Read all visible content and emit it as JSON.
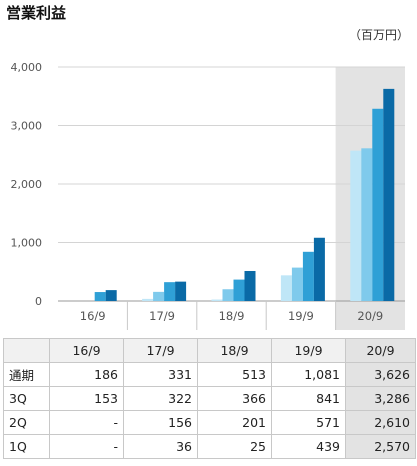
{
  "title": "営業利益",
  "unit": "（百万円）",
  "chart_data": {
    "type": "bar",
    "title": "営業利益",
    "categories": [
      "16/9",
      "17/9",
      "18/9",
      "19/9",
      "20/9"
    ],
    "ylim": [
      0,
      4000
    ],
    "yticks": [
      "0",
      "1,000",
      "2,000",
      "3,000",
      "4,000"
    ],
    "ytick_values": [
      0,
      1000,
      2000,
      3000,
      4000
    ],
    "grid": true,
    "highlight_category": "20/9",
    "series": [
      {
        "name": "1Q",
        "color": "#bfe6f7",
        "values": [
          null,
          36,
          25,
          439,
          2570
        ]
      },
      {
        "name": "2Q",
        "color": "#7fcaec",
        "values": [
          null,
          156,
          201,
          571,
          2610
        ]
      },
      {
        "name": "3Q",
        "color": "#2fa0d6",
        "values": [
          153,
          322,
          366,
          841,
          3286
        ]
      },
      {
        "name": "通期",
        "color": "#0a6aa6",
        "values": [
          186,
          331,
          513,
          1081,
          3626
        ]
      }
    ]
  },
  "table": {
    "headers": [
      "16/9",
      "17/9",
      "18/9",
      "19/9",
      "20/9"
    ],
    "rows": [
      {
        "label": "通期",
        "cells": [
          "186",
          "331",
          "513",
          "1,081",
          "3,626"
        ]
      },
      {
        "label": "3Q",
        "cells": [
          "153",
          "322",
          "366",
          "841",
          "3,286"
        ]
      },
      {
        "label": "2Q",
        "cells": [
          "-",
          "156",
          "201",
          "571",
          "2,610"
        ]
      },
      {
        "label": "1Q",
        "cells": [
          "-",
          "36",
          "25",
          "439",
          "2,570"
        ]
      }
    ]
  }
}
